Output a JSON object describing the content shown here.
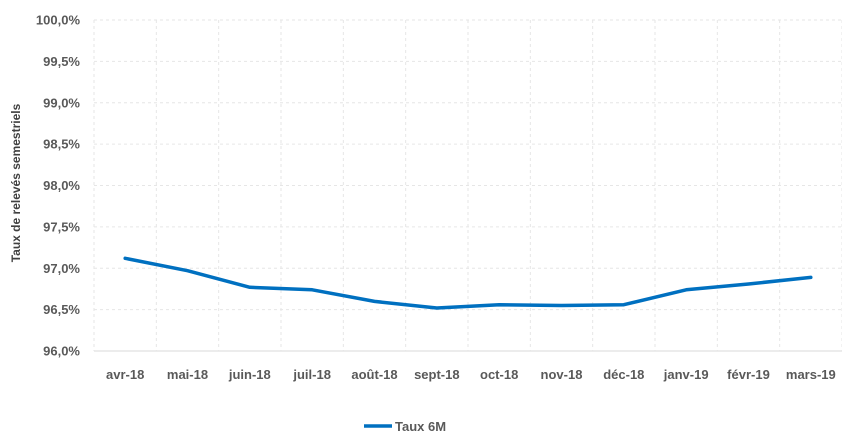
{
  "chart_data": {
    "type": "line",
    "title": "",
    "xlabel": "",
    "ylabel": "Taux de relevés semestriels",
    "categories": [
      "avr-18",
      "mai-18",
      "juin-18",
      "juil-18",
      "août-18",
      "sept-18",
      "oct-18",
      "nov-18",
      "déc-18",
      "janv-19",
      "févr-19",
      "mars-19"
    ],
    "series": [
      {
        "name": "Taux 6M",
        "color": "#0070c0",
        "values": [
          97.12,
          96.97,
          96.77,
          96.74,
          96.6,
          96.52,
          96.56,
          96.55,
          96.56,
          96.74,
          96.81,
          96.89
        ]
      }
    ],
    "ylim": [
      96.0,
      100.0
    ],
    "y_ticks": [
      {
        "value": 96.0,
        "label": "96,0%"
      },
      {
        "value": 96.5,
        "label": "96,5%"
      },
      {
        "value": 97.0,
        "label": "97,0%"
      },
      {
        "value": 97.5,
        "label": "97,5%"
      },
      {
        "value": 98.0,
        "label": "98,0%"
      },
      {
        "value": 98.5,
        "label": "98,5%"
      },
      {
        "value": 99.0,
        "label": "99,0%"
      },
      {
        "value": 99.5,
        "label": "99,5%"
      },
      {
        "value": 100.0,
        "label": "100,0%"
      }
    ],
    "grid": true,
    "legend_position": "bottom"
  }
}
